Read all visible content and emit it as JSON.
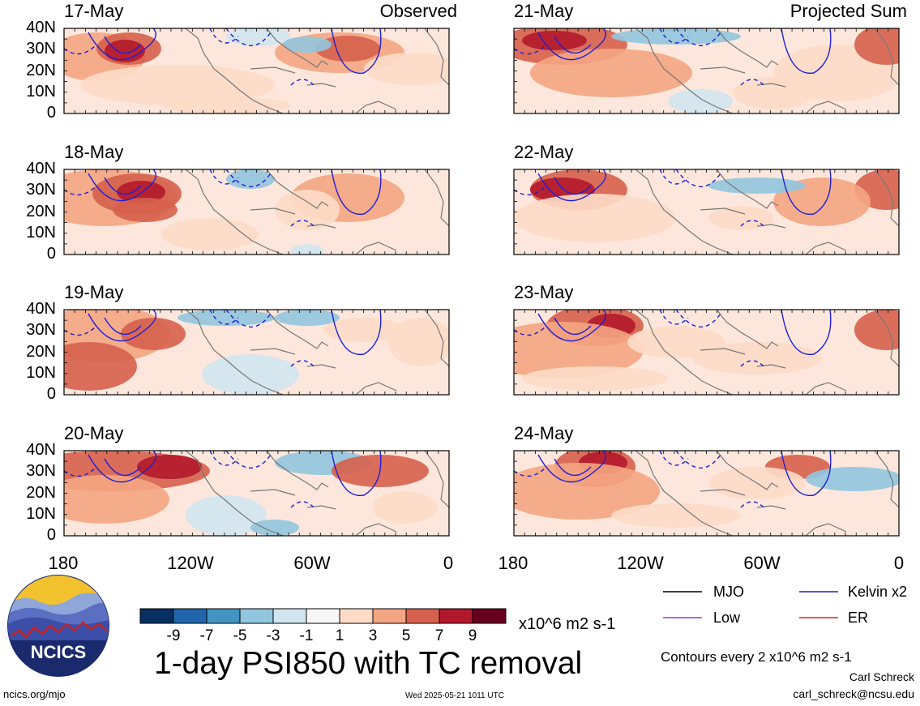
{
  "panels": {
    "observed": [
      {
        "date": "17-May",
        "title_right": "Observed"
      },
      {
        "date": "18-May",
        "title_right": ""
      },
      {
        "date": "19-May",
        "title_right": ""
      },
      {
        "date": "20-May",
        "title_right": ""
      }
    ],
    "projected": [
      {
        "date": "21-May",
        "title_right": "Projected Sum"
      },
      {
        "date": "22-May",
        "title_right": ""
      },
      {
        "date": "23-May",
        "title_right": ""
      },
      {
        "date": "24-May",
        "title_right": ""
      }
    ]
  },
  "lat_labels": [
    "40N",
    "30N",
    "20N",
    "10N",
    "0"
  ],
  "lon_labels": [
    "180",
    "120W",
    "60W",
    "0"
  ],
  "colorbar": {
    "colors": [
      "#053061",
      "#2166ac",
      "#4393c3",
      "#92c5de",
      "#d1e5f0",
      "#f7f7f7",
      "#fddbc7",
      "#f4a582",
      "#d6604d",
      "#b2182b",
      "#67001f"
    ],
    "labels": [
      "-9",
      "-7",
      "-5",
      "-3",
      "-1",
      "1",
      "3",
      "5",
      "7",
      "9"
    ],
    "units": "x10^6 m2 s-1"
  },
  "legend": {
    "items": [
      {
        "label": "MJO",
        "color": "#000000"
      },
      {
        "label": "Kelvin x2",
        "color": "#1f1fd6"
      },
      {
        "label": "Low",
        "color": "#9b30d9"
      },
      {
        "label": "ER",
        "color": "#e0201b"
      }
    ],
    "contour_note": "Contours every 2 x10^6 m2 s-1"
  },
  "main_title": "1-day PSI850 with TC removal",
  "logo_text": "NCICS",
  "footer": {
    "url": "ncics.org/mjo",
    "timestamp": "Wed 2025-05-21 1011 UTC",
    "author": "Carl Schreck",
    "email": "carl_schreck@ncsu.edu"
  }
}
